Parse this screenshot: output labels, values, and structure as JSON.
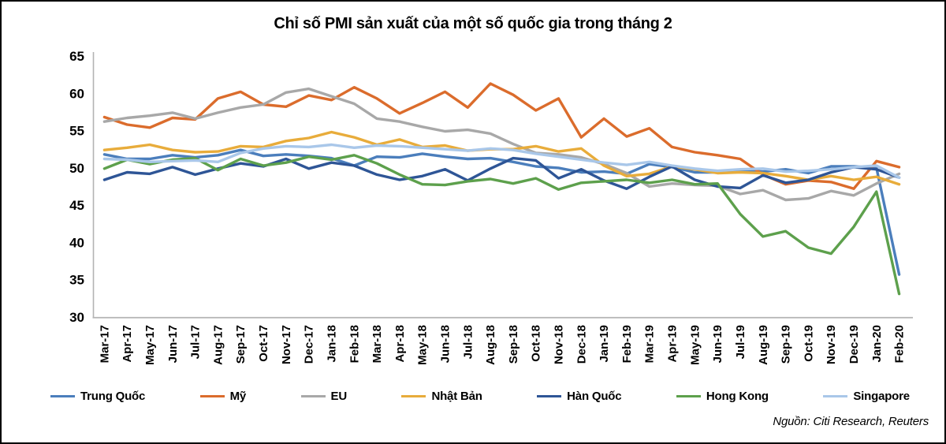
{
  "page": {
    "source": "Nguồn: Citi Research, Reuters"
  },
  "chart_data": {
    "type": "line",
    "title": "Chỉ số PMI sản xuất của một số quốc gia trong tháng 2",
    "categories": [
      "Mar-17",
      "Apr-17",
      "May-17",
      "Jun-17",
      "Jul-17",
      "Aug-17",
      "Sep-17",
      "Oct-17",
      "Nov-17",
      "Dec-17",
      "Jan-18",
      "Feb-18",
      "Mar-18",
      "Apr-18",
      "May-18",
      "Jun-18",
      "Jul-18",
      "Aug-18",
      "Sep-18",
      "Oct-18",
      "Nov-18",
      "Dec-18",
      "Jan-19",
      "Feb-19",
      "Mar-19",
      "Apr-19",
      "May-19",
      "Jun-19",
      "Jul-19",
      "Aug-19",
      "Sep-19",
      "Oct-19",
      "Nov-19",
      "Dec-19",
      "Jan-20",
      "Feb-20"
    ],
    "series": [
      {
        "name": "Trung Quốc",
        "color": "#4B7EBC",
        "values": [
          51.8,
          51.2,
          51.2,
          51.7,
          51.4,
          51.7,
          52.4,
          51.6,
          51.8,
          51.6,
          51.3,
          50.3,
          51.5,
          51.4,
          51.9,
          51.5,
          51.2,
          51.3,
          50.8,
          50.2,
          50.0,
          49.4,
          49.5,
          49.2,
          50.5,
          50.1,
          49.4,
          49.4,
          49.7,
          49.5,
          49.8,
          49.3,
          50.2,
          50.2,
          50.0,
          35.7
        ]
      },
      {
        "name": "Mỹ",
        "color": "#DB6C2C",
        "values": [
          56.8,
          55.8,
          55.4,
          56.7,
          56.5,
          59.3,
          60.2,
          58.5,
          58.2,
          59.7,
          59.1,
          60.8,
          59.3,
          57.3,
          58.7,
          60.2,
          58.1,
          61.3,
          59.8,
          57.7,
          59.3,
          54.1,
          56.6,
          54.2,
          55.3,
          52.8,
          52.1,
          51.7,
          51.2,
          49.1,
          47.8,
          48.3,
          48.1,
          47.2,
          50.9,
          50.1
        ]
      },
      {
        "name": "EU",
        "color": "#A8A8A8",
        "values": [
          56.2,
          56.7,
          57.0,
          57.4,
          56.6,
          57.4,
          58.1,
          58.5,
          60.1,
          60.6,
          59.6,
          58.6,
          56.6,
          56.2,
          55.5,
          54.9,
          55.1,
          54.6,
          53.2,
          52.0,
          51.8,
          51.4,
          50.5,
          49.3,
          47.5,
          47.9,
          47.7,
          47.6,
          46.5,
          47.0,
          45.7,
          45.9,
          46.9,
          46.3,
          47.9,
          49.2
        ]
      },
      {
        "name": "Nhật Bản",
        "color": "#E8AC3B",
        "values": [
          52.4,
          52.7,
          53.1,
          52.4,
          52.1,
          52.2,
          52.9,
          52.8,
          53.6,
          54.0,
          54.8,
          54.1,
          53.1,
          53.8,
          52.8,
          53.0,
          52.3,
          52.5,
          52.5,
          52.9,
          52.2,
          52.6,
          50.3,
          48.9,
          49.2,
          50.2,
          49.8,
          49.3,
          49.4,
          49.3,
          48.9,
          48.4,
          48.9,
          48.4,
          48.8,
          47.8
        ]
      },
      {
        "name": "Hàn Quốc",
        "color": "#2E5596",
        "values": [
          48.4,
          49.4,
          49.2,
          50.1,
          49.1,
          49.9,
          50.6,
          50.2,
          51.2,
          49.9,
          50.7,
          50.3,
          49.1,
          48.4,
          48.9,
          49.8,
          48.3,
          49.9,
          51.3,
          51.0,
          48.6,
          49.8,
          48.3,
          47.2,
          48.8,
          50.2,
          48.4,
          47.5,
          47.3,
          49.0,
          48.0,
          48.4,
          49.4,
          50.1,
          49.8,
          48.7
        ]
      },
      {
        "name": "Hong Kong",
        "color": "#5DA04C",
        "values": [
          49.9,
          51.1,
          50.5,
          51.1,
          51.3,
          49.7,
          51.2,
          50.3,
          50.7,
          51.5,
          51.1,
          51.7,
          50.6,
          49.1,
          47.8,
          47.7,
          48.2,
          48.5,
          47.9,
          48.6,
          47.1,
          48.0,
          48.2,
          48.4,
          48.0,
          48.4,
          47.8,
          47.9,
          43.8,
          40.8,
          41.5,
          39.3,
          38.5,
          42.1,
          46.8,
          33.1
        ]
      },
      {
        "name": "Singapore",
        "color": "#A9C7E9",
        "values": [
          51.2,
          51.1,
          50.8,
          50.9,
          51.0,
          50.8,
          52.0,
          52.6,
          52.9,
          52.8,
          53.1,
          52.7,
          53.0,
          52.9,
          52.7,
          52.5,
          52.3,
          52.6,
          52.4,
          51.9,
          51.5,
          51.1,
          50.7,
          50.4,
          50.8,
          50.3,
          49.9,
          49.6,
          49.8,
          49.9,
          49.5,
          49.6,
          49.8,
          50.1,
          50.3,
          48.7
        ]
      }
    ],
    "ylim": [
      30,
      65
    ],
    "ytick_step": 5,
    "xlabel": "",
    "ylabel": "",
    "grid": false,
    "legend_position": "bottom",
    "axis_color": "#B3B3B3"
  }
}
